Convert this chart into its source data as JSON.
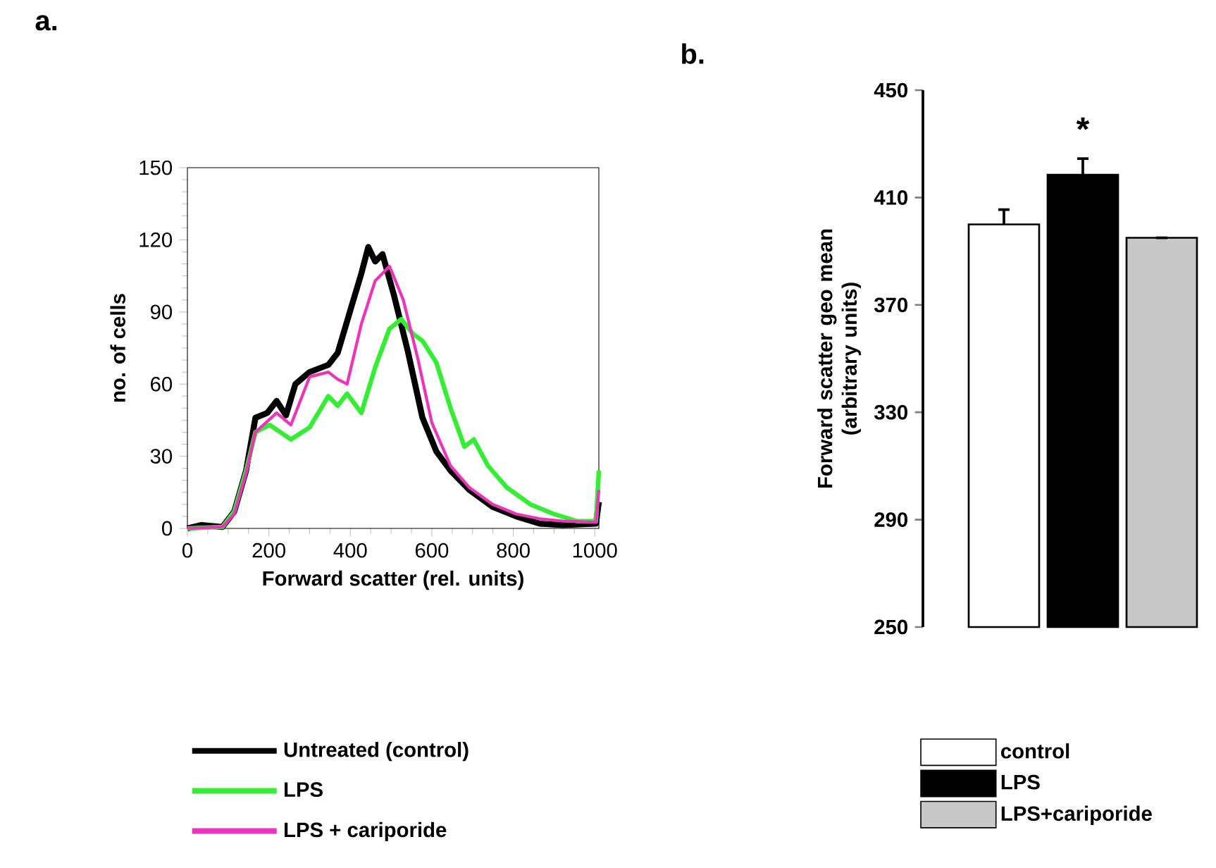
{
  "chart_data": [
    {
      "type": "line",
      "xlabel": "Forward scatter (rel. units)",
      "ylabel": "no. of cells",
      "xlim": [
        0,
        1010
      ],
      "ylim": [
        0,
        150
      ],
      "xticks": [
        0,
        200,
        400,
        600,
        800,
        1000
      ],
      "yticks": [
        0,
        30,
        60,
        90,
        120,
        150
      ],
      "legend": "bottom",
      "annotations": [
        "a."
      ],
      "series": [
        {
          "name": "Untreated (control)",
          "color": "#000000",
          "x": [
            0,
            35,
            86,
            115,
            144,
            167,
            196,
            219,
            242,
            265,
            300,
            346,
            369,
            404,
            427,
            444,
            461,
            479,
            507,
            542,
            577,
            611,
            646,
            692,
            749,
            807,
            865,
            922,
            1003,
            1010
          ],
          "values": [
            0,
            1.4,
            0.6,
            7,
            24,
            46,
            48,
            53,
            47,
            60,
            65,
            68,
            73,
            93,
            106,
            117,
            111,
            114,
            97,
            73,
            46,
            32,
            24,
            16,
            9,
            5,
            2,
            1.4,
            2,
            11
          ]
        },
        {
          "name": "LPS",
          "color": "#33ee33",
          "x": [
            0,
            86,
            115,
            144,
            167,
            202,
            254,
            300,
            346,
            369,
            392,
            427,
            461,
            496,
            525,
            553,
            577,
            611,
            646,
            680,
            703,
            738,
            784,
            842,
            899,
            957,
            1003,
            1010
          ],
          "values": [
            0,
            0.6,
            7,
            24,
            40,
            43,
            37,
            42,
            55,
            51,
            56,
            48,
            67,
            83,
            87,
            81,
            78,
            69,
            50,
            34,
            37,
            26,
            17,
            10,
            6,
            3,
            3,
            24
          ]
        },
        {
          "name": "LPS + cariporide",
          "color": "#ee33bb",
          "x": [
            0,
            86,
            115,
            144,
            167,
            219,
            254,
            300,
            346,
            369,
            392,
            427,
            461,
            496,
            530,
            565,
            600,
            646,
            692,
            749,
            807,
            865,
            922,
            1003,
            1010
          ],
          "values": [
            0,
            0.6,
            6,
            23,
            40,
            48,
            43,
            63,
            65,
            62,
            60,
            85,
            103,
            109,
            95,
            71,
            44,
            26,
            17,
            10,
            6,
            4,
            3,
            2.5,
            16
          ]
        }
      ]
    },
    {
      "type": "bar",
      "ylabel": "Forward scatter geo mean\n(arbitrary units)",
      "categories": [
        null
      ],
      "ylim": [
        250,
        450
      ],
      "yticks": [
        250,
        290,
        330,
        370,
        410,
        450
      ],
      "legend": "bottom",
      "annotations": [
        "b.",
        "*"
      ],
      "series": [
        {
          "name": "control",
          "color": "#ffffff",
          "values": [
            400
          ],
          "errors": [
            5.5
          ]
        },
        {
          "name": "LPS",
          "color": "#000000",
          "values": [
            418.5
          ],
          "errors": [
            6
          ]
        },
        {
          "name": "LPS+cariporide",
          "color": "#c8c8c8",
          "values": [
            395
          ],
          "errors": [
            null
          ]
        }
      ]
    }
  ]
}
